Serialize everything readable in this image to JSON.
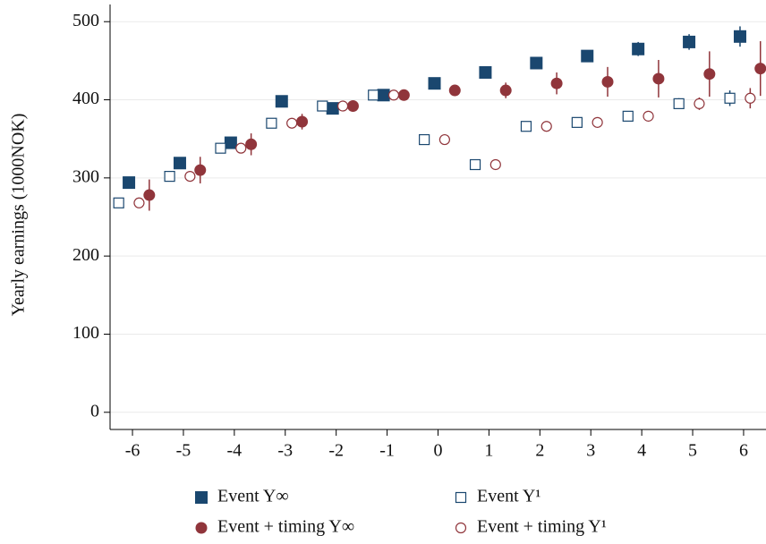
{
  "chart_data": {
    "type": "scatter",
    "y_label": "Yearly earnings (1000NOK)",
    "xlim": [
      -6.44,
      6.44
    ],
    "xticks": [
      -6,
      -5,
      -4,
      -3,
      -2,
      -1,
      0,
      1,
      2,
      3,
      4,
      5,
      6
    ],
    "ylim": [
      -22,
      522
    ],
    "yticks": [
      0,
      100,
      200,
      300,
      400,
      500
    ],
    "grid": true,
    "series": [
      {
        "name": "Event Y∞",
        "color": "#1a476f",
        "marker": "square",
        "filled": true,
        "x": [
          -6.07,
          -5.07,
          -4.07,
          -3.07,
          -2.07,
          -1.07,
          -0.07,
          0.93,
          1.93,
          2.93,
          3.93,
          4.93,
          5.93
        ],
        "values": [
          294,
          319,
          345,
          398,
          389,
          406,
          421,
          435,
          447,
          456,
          465,
          474,
          481
        ],
        "errors": [
          6,
          5,
          5,
          4,
          4,
          4,
          3,
          3,
          4,
          6,
          9,
          10,
          13
        ]
      },
      {
        "name": "Event Y¹",
        "color": "#1a476f",
        "marker": "square",
        "filled": false,
        "x": [
          -6.27,
          -5.27,
          -4.27,
          -3.27,
          -2.27,
          -1.27,
          -0.27,
          0.73,
          1.73,
          2.73,
          3.73,
          4.73,
          5.73
        ],
        "values": [
          268,
          302,
          338,
          370,
          392,
          406,
          349,
          317,
          366,
          371,
          379,
          395,
          402
        ],
        "errors": [
          2,
          2,
          2,
          2,
          3,
          3,
          3,
          3,
          4,
          4,
          5,
          7,
          10
        ]
      },
      {
        "name": "Event + timing Y∞",
        "color": "#90353b",
        "marker": "circle",
        "filled": true,
        "x": [
          -5.67,
          -4.67,
          -3.67,
          -2.67,
          -1.67,
          -0.67,
          0.33,
          1.33,
          2.33,
          3.33,
          4.33,
          5.33,
          6.33
        ],
        "values": [
          278,
          310,
          343,
          372,
          392,
          406,
          412,
          412,
          421,
          423,
          427,
          433,
          440
        ],
        "errors": [
          20,
          17,
          14,
          10,
          5,
          4,
          4,
          10,
          14,
          19,
          24,
          29,
          35
        ]
      },
      {
        "name": "Event + timing Y¹",
        "color": "#90353b",
        "marker": "circle",
        "filled": false,
        "x": [
          -5.87,
          -4.87,
          -3.87,
          -2.87,
          -1.87,
          -0.87,
          0.13,
          1.13,
          2.13,
          3.13,
          4.13,
          5.13,
          6.13
        ],
        "values": [
          268,
          302,
          338,
          370,
          392,
          406,
          349,
          317,
          366,
          371,
          379,
          395,
          402
        ],
        "errors": [
          3,
          3,
          3,
          3,
          3,
          3,
          3,
          3,
          4,
          5,
          6,
          8,
          13
        ]
      }
    ]
  }
}
